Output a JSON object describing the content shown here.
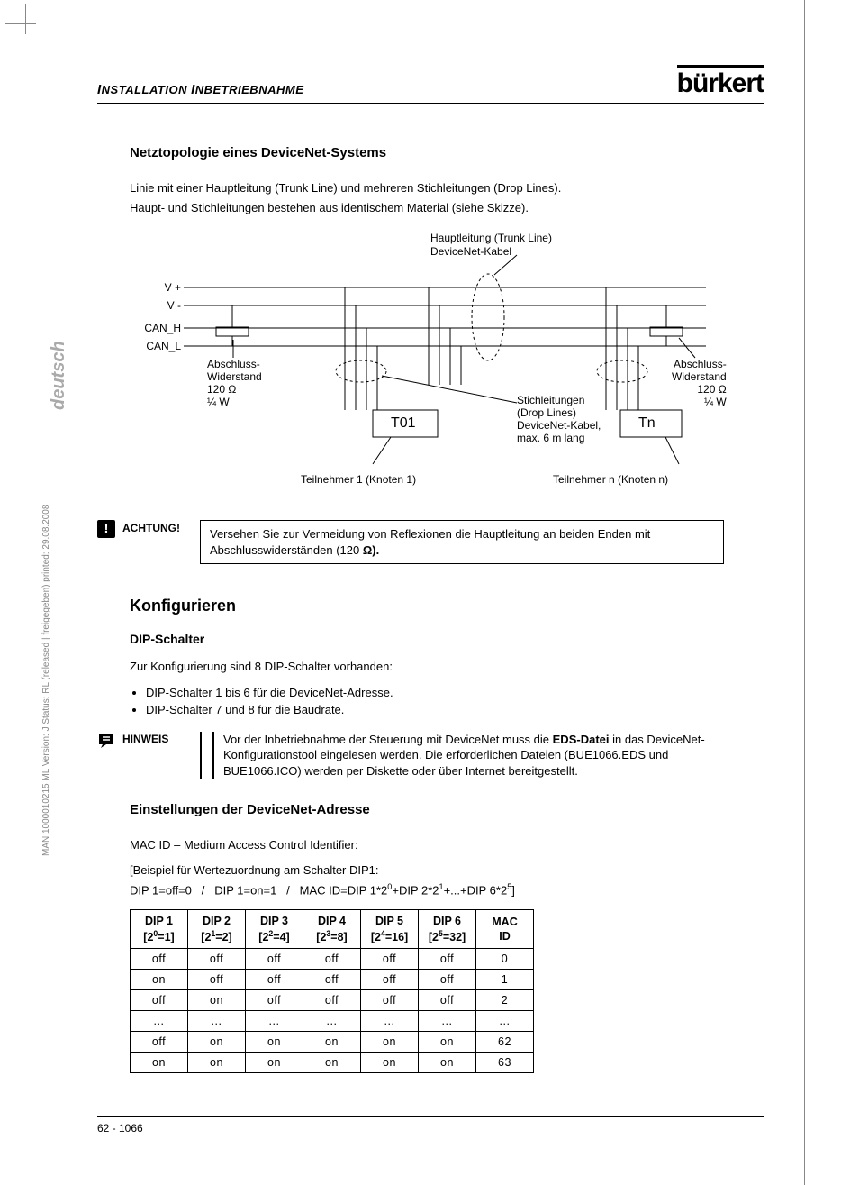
{
  "header": {
    "section_title_html": "I<span class='nrm'>NSTALLATION</span> I<span class='nrm'>NBETRIEBNAHME</span>",
    "section_title": "INSTALLATION INBETRIEBNAHME",
    "logo": "burkert",
    "logo_display": "bürkert"
  },
  "side": {
    "lang": "deutsch",
    "doc_info": "MAN  1000010215  ML  Version: J  Status: RL (released | freigegeben)  printed: 29.08.2008"
  },
  "section1": {
    "title": "Netztopologie eines DeviceNet-Systems",
    "para1": "Linie mit einer Hauptleitung (Trunk Line) und mehreren Stichleitungen (Drop Lines).",
    "para2": "Haupt- und Stichleitungen bestehen aus identischem Material (siehe Skizze)."
  },
  "diagram": {
    "trunk_label1": "Hauptleitung (Trunk Line)",
    "trunk_label2": "DeviceNet-Kabel",
    "wire1": "V +",
    "wire2": "V -",
    "wire3": "CAN_H",
    "wire4": "CAN_L",
    "term_l1": "Abschluss-",
    "term_l2": "Widerstand",
    "term_l3": "120 Ω",
    "term_l4": "¼ W",
    "term_r1": "Abschluss-",
    "term_r2": "Widerstand",
    "term_r3": "120 Ω",
    "term_r4": "¼ W",
    "node1": "T01",
    "noden": "Tn",
    "drop1": "Stichleitungen",
    "drop2": "(Drop Lines)",
    "drop3": "DeviceNet-Kabel,",
    "drop4": "max. 6 m lang",
    "part1": "Teilnehmer 1 (Knoten 1)",
    "partn": "Teilnehmer n (Knoten n)",
    "colors": {
      "line": "#000000",
      "dash": "#000000"
    }
  },
  "achtung": {
    "label": "ACHTUNG!",
    "text_pre": "Versehen Sie zur Vermeidung von Reflexionen die Hauptleitung an beiden Enden mit Abschlusswiderständen (120 ",
    "text_bold": "Ω).",
    "full": "Versehen Sie zur Vermeidung von Reflexionen die Hauptleitung an beiden Enden mit Abschlusswiderständen (120 Ω)."
  },
  "section2": {
    "title": "Konfigurieren",
    "sub": "DIP-Schalter",
    "intro": "Zur Konfigurierung sind 8 DIP-Schalter vorhanden:",
    "bullets": [
      "DIP-Schalter 1 bis 6 für die DeviceNet-Adresse.",
      "DIP-Schalter 7 und 8 für die Baudrate."
    ]
  },
  "hinweis": {
    "label": "HINWEIS",
    "text": "Vor der Inbetriebnahme der Steuerung mit DeviceNet muss die EDS-Datei in das DeviceNet-Konfigurationstool eingelesen werden. Die erforderlichen Dateien (BUE1066.EDS und BUE1066.ICO) werden per Diskette oder über Internet bereitgestellt.",
    "bold_word": "EDS-Datei"
  },
  "section3": {
    "title": "Einstellungen der DeviceNet-Adresse",
    "line1": "MAC ID – Medium Access Control Identifier:",
    "line2": "[Beispiel für Wertezuordnung am Schalter DIP1:",
    "line3": "DIP 1=off=0   /   DIP 1=on=1   /   MAC ID=DIP 1*2⁰+DIP 2*2¹+...+DIP 6*2⁵]"
  },
  "table": {
    "headers": [
      {
        "l1": "DIP 1",
        "l2": "[2⁰=1]"
      },
      {
        "l1": "DIP 2",
        "l2": "[2¹=2]"
      },
      {
        "l1": "DIP 3",
        "l2": "[2²=4]"
      },
      {
        "l1": "DIP 4",
        "l2": "[2³=8]"
      },
      {
        "l1": "DIP 5",
        "l2": "[2⁴=16]"
      },
      {
        "l1": "DIP 6",
        "l2": "[2⁵=32]"
      },
      {
        "l1": "MAC",
        "l2": "ID"
      }
    ],
    "rows": [
      [
        "off",
        "off",
        "off",
        "off",
        "off",
        "off",
        "0"
      ],
      [
        "on",
        "off",
        "off",
        "off",
        "off",
        "off",
        "1"
      ],
      [
        "off",
        "on",
        "off",
        "off",
        "off",
        "off",
        "2"
      ],
      [
        "...",
        "...",
        "...",
        "...",
        "...",
        "...",
        "..."
      ],
      [
        "off",
        "on",
        "on",
        "on",
        "on",
        "on",
        "62"
      ],
      [
        "on",
        "on",
        "on",
        "on",
        "on",
        "on",
        "63"
      ]
    ]
  },
  "footer": {
    "text": "62  -  1066"
  }
}
